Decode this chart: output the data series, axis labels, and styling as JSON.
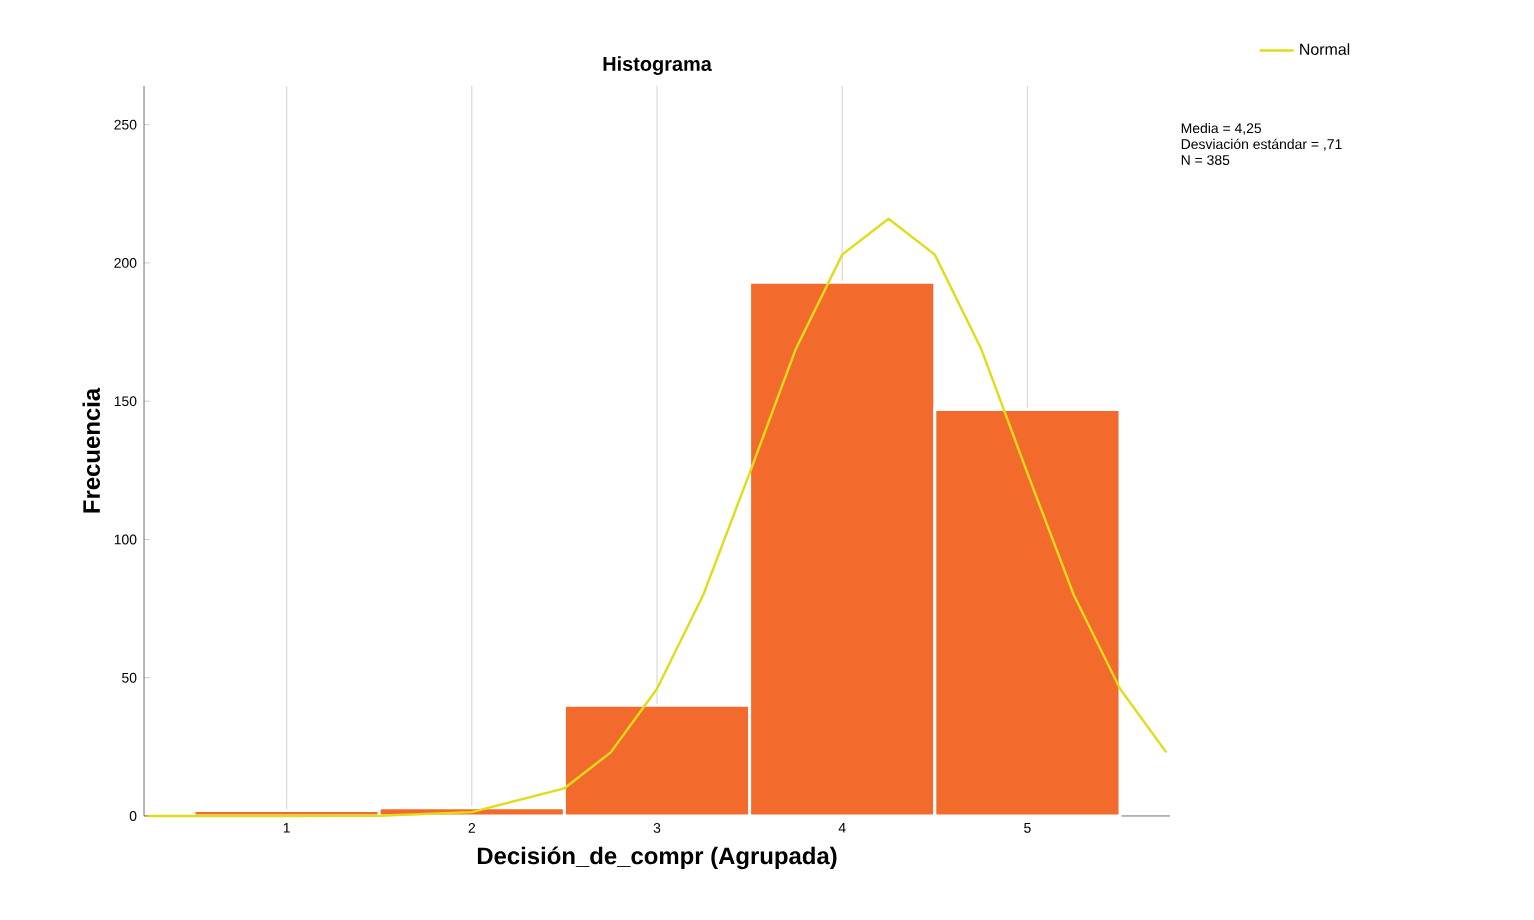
{
  "chart_data": {
    "type": "histogram",
    "title": "Histograma",
    "xlabel": "Decisión_de_compr (Agrupada)",
    "ylabel": "Frecuencia",
    "bins": [
      0.5,
      1.5,
      2.5,
      3.5,
      4.5,
      5.5
    ],
    "values": [
      2,
      3,
      40,
      193,
      147
    ],
    "color": "#f26b2c",
    "series": [
      {
        "type": "line",
        "name": "Normal",
        "color": "#e0dc1a",
        "x": [
          0.25,
          0.5,
          1.0,
          1.5,
          2.0,
          2.5,
          2.75,
          3.0,
          3.25,
          3.5,
          3.75,
          4.0,
          4.25,
          4.5,
          4.75,
          5.0,
          5.25,
          5.5,
          5.75
        ],
        "values": [
          0,
          0,
          0,
          0.1,
          1.4,
          10,
          23,
          46,
          80,
          124,
          169,
          203,
          216,
          203,
          169,
          124,
          80,
          46,
          23
        ]
      }
    ],
    "xlim": [
      0.23,
      5.77
    ],
    "xticks": [
      1,
      2,
      3,
      4,
      5
    ],
    "ylim": [
      0,
      264
    ],
    "yticks": [
      0,
      50,
      100,
      150,
      200,
      250
    ],
    "grid": "x",
    "legend": "top right",
    "marker": "none",
    "line_style": "solid",
    "annotations": [
      "Media = 4,25",
      "Desviación estándar = ,71",
      "N = 385"
    ]
  }
}
